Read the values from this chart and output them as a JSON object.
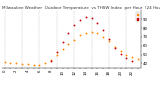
{
  "title": "Milwaukee Weather  Outdoor Temperature  vs THSW Index  per Hour  (24 Hours)",
  "hours": [
    0,
    1,
    2,
    3,
    4,
    5,
    6,
    7,
    8,
    9,
    10,
    11,
    12,
    13,
    14,
    15,
    16,
    17,
    18,
    19,
    20,
    21,
    22,
    23
  ],
  "outdoor_temp": [
    42,
    41,
    40,
    39,
    39,
    38,
    38,
    40,
    44,
    50,
    56,
    62,
    67,
    72,
    75,
    76,
    74,
    70,
    65,
    59,
    54,
    50,
    47,
    45
  ],
  "thsw_index": [
    null,
    null,
    null,
    null,
    null,
    null,
    null,
    null,
    43,
    53,
    64,
    74,
    83,
    89,
    93,
    91,
    86,
    78,
    68,
    58,
    51,
    46,
    43,
    null
  ],
  "temp_color": "#FF8800",
  "thsw_color": "#CC0000",
  "bg_color": "#ffffff",
  "grid_color": "#bbbbbb",
  "ylim": [
    35,
    100
  ],
  "yticks": [
    40,
    50,
    60,
    70,
    80,
    90
  ],
  "legend_temp_color": "#FF8800",
  "legend_thsw_color": "#CC0000",
  "marker_size": 1.8,
  "title_fontsize": 3.0,
  "tick_fontsize": 2.8
}
